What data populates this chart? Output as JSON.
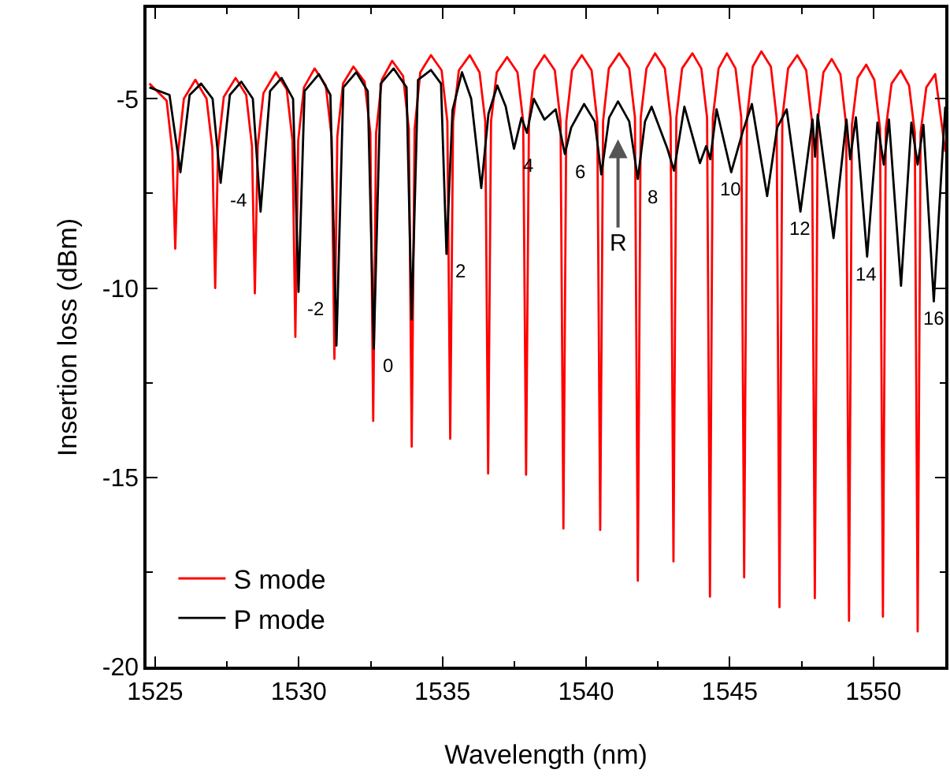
{
  "chart_data": {
    "type": "line",
    "xlabel": "Wavelength (nm)",
    "ylabel": "Insertion loss (dBm)",
    "xlim": [
      1524.7,
      1552.5
    ],
    "xticks": [
      1525,
      1530,
      1535,
      1540,
      1545,
      1550
    ],
    "ylim": [
      -20,
      -2.6
    ],
    "yticks": [
      -20,
      -15,
      -10,
      -5
    ],
    "grid": false,
    "legend": "bottom left",
    "marker": "none",
    "line_style": "solid",
    "annotations": [
      {
        "text": "-4",
        "x": 1527.28,
        "y": -7.22
      },
      {
        "text": "-2",
        "x": 1529.99,
        "y": -10.1
      },
      {
        "text": "0",
        "x": 1532.61,
        "y": -11.6
      },
      {
        "text": "2",
        "x": 1535.14,
        "y": -9.1
      },
      {
        "text": "4",
        "x": 1537.49,
        "y": -6.32
      },
      {
        "text": "6",
        "x": 1539.26,
        "y": -6.46
      },
      {
        "text": "8",
        "x": 1541.8,
        "y": -7.12
      },
      {
        "text": "R",
        "x": 1541.11,
        "y": -5.07
      },
      {
        "text": "10",
        "x": 1545.05,
        "y": -6.94
      },
      {
        "text": "12",
        "x": 1547.46,
        "y": -7.98
      },
      {
        "text": "14",
        "x": 1549.78,
        "y": -9.17
      },
      {
        "text": "16",
        "x": 1552.1,
        "y": -10.35
      }
    ],
    "series": [
      {
        "name": "S mode",
        "color": "#ff0000",
        "x": [
          1524.8,
          1525.4,
          1525.6,
          1525.7,
          1525.8,
          1526.0,
          1526.4,
          1526.79,
          1526.99,
          1527.09,
          1527.19,
          1527.39,
          1527.8,
          1528.17,
          1528.37,
          1528.47,
          1528.57,
          1528.77,
          1529.2,
          1529.58,
          1529.78,
          1529.88,
          1529.98,
          1530.18,
          1530.55,
          1530.94,
          1531.14,
          1531.24,
          1531.34,
          1531.54,
          1531.9,
          1532.29,
          1532.49,
          1532.59,
          1532.69,
          1532.89,
          1533.25,
          1533.63,
          1533.83,
          1533.93,
          1534.03,
          1534.23,
          1534.6,
          1534.97,
          1535.17,
          1535.27,
          1535.37,
          1535.57,
          1535.95,
          1536.29,
          1536.49,
          1536.59,
          1536.69,
          1536.89,
          1537.25,
          1537.61,
          1537.81,
          1537.91,
          1538.01,
          1538.21,
          1538.55,
          1538.91,
          1539.11,
          1539.21,
          1539.31,
          1539.51,
          1539.85,
          1540.19,
          1540.39,
          1540.49,
          1540.59,
          1540.79,
          1541.15,
          1541.5,
          1541.7,
          1541.8,
          1541.9,
          1542.1,
          1542.4,
          1542.74,
          1542.94,
          1543.04,
          1543.14,
          1543.34,
          1543.7,
          1544.01,
          1544.21,
          1544.31,
          1544.41,
          1544.61,
          1544.9,
          1545.2,
          1545.4,
          1545.5,
          1545.6,
          1545.8,
          1546.1,
          1546.43,
          1546.63,
          1546.73,
          1546.83,
          1547.03,
          1547.35,
          1547.66,
          1547.86,
          1547.96,
          1548.06,
          1548.26,
          1548.55,
          1548.85,
          1549.05,
          1549.15,
          1549.25,
          1549.45,
          1549.75,
          1550.03,
          1550.23,
          1550.33,
          1550.43,
          1550.63,
          1550.95,
          1551.24,
          1551.44,
          1551.54,
          1551.64,
          1551.84,
          1552.15,
          1552.5
        ],
        "values": [
          -4.6,
          -5.05,
          -6.4,
          -8.96,
          -6.4,
          -5.0,
          -4.5,
          -5.0,
          -6.3,
          -10.0,
          -6.3,
          -4.95,
          -4.45,
          -4.9,
          -6.25,
          -10.14,
          -6.25,
          -4.85,
          -4.3,
          -4.75,
          -6.1,
          -11.29,
          -6.1,
          -4.7,
          -4.2,
          -4.65,
          -6.0,
          -11.87,
          -6.0,
          -4.6,
          -4.15,
          -4.55,
          -5.9,
          -13.51,
          -5.9,
          -4.5,
          -4.0,
          -4.4,
          -5.8,
          -14.19,
          -5.8,
          -4.3,
          -3.85,
          -4.25,
          -5.6,
          -13.98,
          -5.6,
          -4.25,
          -3.85,
          -4.3,
          -5.6,
          -14.9,
          -5.6,
          -4.3,
          -3.9,
          -4.3,
          -5.6,
          -14.93,
          -5.6,
          -4.25,
          -3.85,
          -4.25,
          -5.6,
          -16.35,
          -5.6,
          -4.25,
          -3.85,
          -4.25,
          -5.6,
          -16.39,
          -5.6,
          -4.2,
          -3.8,
          -4.2,
          -5.5,
          -17.73,
          -5.5,
          -4.2,
          -3.8,
          -4.2,
          -5.5,
          -17.22,
          -5.5,
          -4.2,
          -3.8,
          -4.2,
          -5.5,
          -18.15,
          -5.5,
          -4.2,
          -3.8,
          -4.2,
          -5.5,
          -17.64,
          -5.5,
          -4.15,
          -3.75,
          -4.15,
          -5.5,
          -18.43,
          -5.5,
          -4.2,
          -3.85,
          -4.25,
          -5.6,
          -18.19,
          -5.6,
          -4.3,
          -3.95,
          -4.35,
          -5.7,
          -18.79,
          -5.7,
          -4.45,
          -4.1,
          -4.5,
          -5.8,
          -18.68,
          -5.8,
          -4.6,
          -4.25,
          -4.65,
          -5.9,
          -19.07,
          -5.9,
          -4.7,
          -4.35,
          -6.4
        ]
      },
      {
        "name": "P mode",
        "color": "#000000",
        "x": [
          1524.8,
          1525.5,
          1525.88,
          1526.2,
          1526.6,
          1527.0,
          1527.28,
          1527.6,
          1528.0,
          1528.4,
          1528.67,
          1529.0,
          1529.4,
          1529.8,
          1529.99,
          1530.2,
          1530.7,
          1531.1,
          1531.31,
          1531.55,
          1532.0,
          1532.4,
          1532.61,
          1532.85,
          1533.3,
          1533.75,
          1533.93,
          1534.15,
          1534.6,
          1534.95,
          1535.14,
          1535.35,
          1535.68,
          1536.0,
          1536.35,
          1536.6,
          1536.91,
          1537.2,
          1537.49,
          1537.75,
          1537.94,
          1538.18,
          1538.55,
          1538.94,
          1539.26,
          1539.48,
          1539.93,
          1540.3,
          1540.53,
          1540.8,
          1541.11,
          1541.5,
          1541.8,
          1542.05,
          1542.28,
          1542.83,
          1543.06,
          1543.42,
          1543.96,
          1544.18,
          1544.32,
          1544.54,
          1545.05,
          1545.45,
          1545.77,
          1546.3,
          1546.65,
          1546.98,
          1547.46,
          1547.88,
          1547.97,
          1548.06,
          1548.61,
          1549.06,
          1549.19,
          1549.39,
          1549.78,
          1550.14,
          1550.36,
          1550.54,
          1550.96,
          1551.32,
          1551.54,
          1551.74,
          1552.1,
          1552.5
        ],
        "values": [
          -4.7,
          -4.9,
          -6.94,
          -4.9,
          -4.6,
          -5.0,
          -7.22,
          -4.9,
          -4.55,
          -5.0,
          -7.98,
          -4.8,
          -4.45,
          -5.0,
          -10.1,
          -4.8,
          -4.35,
          -4.9,
          -11.52,
          -4.7,
          -4.3,
          -4.8,
          -11.6,
          -4.6,
          -4.2,
          -4.7,
          -10.83,
          -4.5,
          -4.24,
          -4.6,
          -9.1,
          -5.3,
          -4.3,
          -5.0,
          -7.36,
          -5.4,
          -4.65,
          -5.2,
          -6.32,
          -5.5,
          -5.9,
          -5.0,
          -5.55,
          -5.28,
          -6.46,
          -5.76,
          -5.14,
          -5.6,
          -7.0,
          -5.5,
          -5.07,
          -5.6,
          -7.12,
          -5.6,
          -5.21,
          -6.32,
          -6.9,
          -5.21,
          -6.7,
          -6.25,
          -6.6,
          -5.28,
          -6.94,
          -5.87,
          -5.14,
          -7.57,
          -5.76,
          -5.28,
          -7.98,
          -5.55,
          -6.53,
          -5.42,
          -8.68,
          -5.55,
          -6.6,
          -5.49,
          -9.17,
          -5.63,
          -6.74,
          -5.55,
          -9.94,
          -5.63,
          -6.74,
          -5.69,
          -10.35,
          -5.21
        ]
      }
    ]
  }
}
